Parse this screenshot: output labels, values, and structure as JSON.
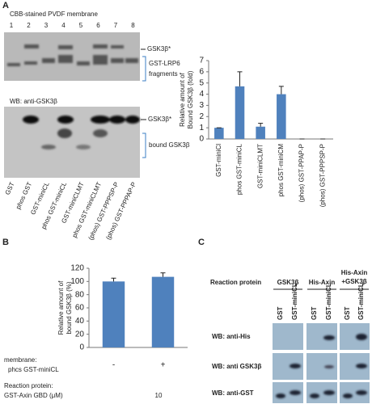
{
  "figure": {
    "panel_a": {
      "letter": "A",
      "membrane_title": "CBB-stained PVDF membrane",
      "lanes": [
        "1",
        "2",
        "3",
        "4",
        "5",
        "6",
        "7",
        "8"
      ],
      "star_top": "GSK3β*",
      "fragments_label": [
        "GST-LRP6",
        "fragments"
      ],
      "wb_title": "WB: anti-GSK3β",
      "star_bottom": "GSK3β*",
      "bound_label": "bound GSK3β",
      "lane_labels": [
        "GST",
        "phos GST",
        "GST-miniCL",
        "phos GST-miniCL",
        "GST-miniCLMT",
        "phos GST-miniCLMT",
        "(phos) GST-PPPSP-P",
        "(phos) GST-PPPAP-P"
      ]
    },
    "panel_b": {
      "letter": "B",
      "membrane_label": [
        "membrane:",
        "phcs GST-miniCL"
      ],
      "reaction_label": [
        "Reaction protein:",
        "GST-Axin GBD (μM)"
      ],
      "concentration": "10"
    },
    "panel_c": {
      "letter": "C",
      "reaction_header": "Reaction protein",
      "groups": [
        "GSK3β",
        "His-Axin",
        "His-Axin",
        "+GSK3β"
      ],
      "lanes": [
        "GST",
        "GST-miniCL",
        "GST",
        "GST-miniCL",
        "GST",
        "GST-miniCL"
      ],
      "rows": [
        "WB: anti-His",
        "WB: anti GSK3β",
        "WB: anti-GST"
      ]
    }
  },
  "chart_data": [
    {
      "type": "bar",
      "y_label": [
        "Relative amount of",
        "Bound GSK3β (fold)"
      ],
      "categories": [
        "GST-miniCl",
        "phos GST-miniCL",
        "GST-miniCLMT",
        "phos GST-miniCM",
        "(phos) GST-PPAP-P",
        "(phos) GST-PPPSP-P"
      ],
      "values": [
        1,
        4.7,
        1.1,
        4.0,
        0,
        0
      ],
      "errors": [
        0,
        1.3,
        0.3,
        0.7,
        0,
        0
      ],
      "color": "#4f81bd",
      "ylim": [
        0,
        7
      ],
      "yticks": [
        0,
        1,
        2,
        3,
        4,
        5,
        6,
        7
      ]
    },
    {
      "type": "bar",
      "y_label": [
        "Relative amount of",
        "bound GSK3β (%)"
      ],
      "categories": [
        "-",
        "+"
      ],
      "values": [
        100,
        107
      ],
      "errors": [
        5,
        6
      ],
      "color": "#4f81bd",
      "ylim": [
        0,
        120
      ],
      "yticks": [
        0,
        20,
        40,
        60,
        80,
        100,
        120
      ]
    }
  ]
}
